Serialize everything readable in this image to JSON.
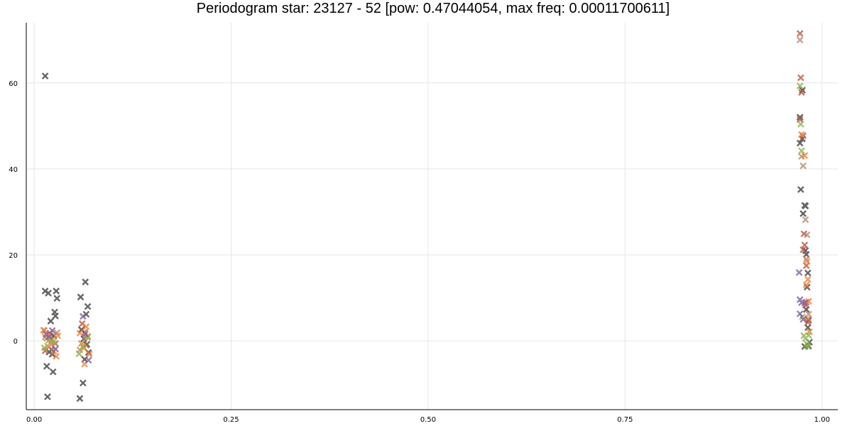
{
  "chart_data": {
    "type": "scatter",
    "title": "Periodogram star: 23127 - 52 [pow: 0.47044054, max freq: 0.00011700611]",
    "xlabel": "",
    "ylabel": "",
    "xlim": [
      -0.01,
      1.02
    ],
    "ylim": [
      -16,
      74
    ],
    "x_ticks": [
      0.0,
      0.25,
      0.5,
      0.75,
      1.0
    ],
    "x_tick_labels": [
      "0.00",
      "0.25",
      "0.50",
      "0.75",
      "1.00"
    ],
    "y_ticks": [
      0,
      20,
      40,
      60
    ],
    "y_tick_labels": [
      "0",
      "20",
      "40",
      "60"
    ],
    "grid": true,
    "legend": "none",
    "marker": "x",
    "series": [
      {
        "color": "#3b3b3b",
        "points": [
          [
            0.014,
            61.6
          ],
          [
            0.014,
            11.6
          ],
          [
            0.018,
            11.1
          ],
          [
            0.028,
            11.6
          ],
          [
            0.016,
            -5.9
          ],
          [
            0.017,
            -13.0
          ],
          [
            0.024,
            -7.2
          ],
          [
            0.026,
            6.7
          ],
          [
            0.027,
            5.8
          ],
          [
            0.029,
            9.9
          ],
          [
            0.021,
            4.6
          ],
          [
            0.022,
            -2.0
          ],
          [
            0.023,
            -3.1
          ],
          [
            0.019,
            -2.6
          ],
          [
            0.025,
            1.2
          ],
          [
            0.059,
            10.2
          ],
          [
            0.058,
            -13.4
          ],
          [
            0.065,
            13.7
          ],
          [
            0.062,
            -9.8
          ],
          [
            0.068,
            8.0
          ],
          [
            0.066,
            6.2
          ],
          [
            0.064,
            -4.3
          ],
          [
            0.069,
            -2.7
          ],
          [
            0.06,
            2.6
          ],
          [
            0.063,
            0.5
          ],
          [
            0.067,
            -0.8
          ],
          [
            0.972,
            52.0
          ],
          [
            0.975,
            47.0
          ],
          [
            0.972,
            46.0
          ],
          [
            0.973,
            35.2
          ],
          [
            0.978,
            31.5
          ],
          [
            0.979,
            31.4
          ],
          [
            0.976,
            29.6
          ],
          [
            0.975,
            58.3
          ],
          [
            0.979,
            21.0
          ],
          [
            0.98,
            20.1
          ],
          [
            0.982,
            15.8
          ],
          [
            0.981,
            12.5
          ],
          [
            0.98,
            7.3
          ],
          [
            0.983,
            4.8
          ],
          [
            0.982,
            3.1
          ],
          [
            0.978,
            -1.3
          ],
          [
            0.983,
            -1.2
          ],
          [
            0.984,
            -0.3
          ]
        ]
      },
      {
        "color": "#b8563f",
        "points": [
          [
            0.972,
            71.5
          ],
          [
            0.973,
            61.2
          ],
          [
            0.974,
            57.8
          ],
          [
            0.972,
            51.5
          ],
          [
            0.976,
            47.7
          ],
          [
            0.977,
            24.9
          ],
          [
            0.978,
            22.3
          ],
          [
            0.976,
            21.2
          ],
          [
            0.98,
            17.5
          ],
          [
            0.98,
            9.0
          ],
          [
            0.979,
            8.3
          ],
          [
            0.982,
            4.3
          ],
          [
            0.02,
            1.8
          ],
          [
            0.027,
            -0.6
          ],
          [
            0.014,
            -2.3
          ],
          [
            0.064,
            2.0
          ],
          [
            0.066,
            -1.0
          ],
          [
            0.061,
            4.0
          ]
        ]
      },
      {
        "color": "#b78a73",
        "points": [
          [
            0.972,
            70.0
          ],
          [
            0.974,
            42.9
          ],
          [
            0.976,
            40.7
          ],
          [
            0.979,
            28.2
          ],
          [
            0.981,
            24.7
          ],
          [
            0.98,
            19.0
          ],
          [
            0.983,
            6.2
          ],
          [
            0.013,
            2.4
          ],
          [
            0.016,
            0.6
          ],
          [
            0.022,
            -0.9
          ],
          [
            0.029,
            1.9
          ],
          [
            0.058,
            -2.1
          ],
          [
            0.065,
            0.9
          ]
        ]
      },
      {
        "color": "#f07f3a",
        "points": [
          [
            0.974,
            48.0
          ],
          [
            0.978,
            43.1
          ],
          [
            0.981,
            18.5
          ],
          [
            0.982,
            14.3
          ],
          [
            0.98,
            13.0
          ],
          [
            0.983,
            9.2
          ],
          [
            0.982,
            5.2
          ],
          [
            0.984,
            2.1
          ],
          [
            0.012,
            2.5
          ],
          [
            0.014,
            0.9
          ],
          [
            0.017,
            -1.2
          ],
          [
            0.019,
            1.6
          ],
          [
            0.021,
            -0.4
          ],
          [
            0.023,
            0.3
          ],
          [
            0.025,
            -2.4
          ],
          [
            0.028,
            -3.6
          ],
          [
            0.03,
            1.2
          ],
          [
            0.058,
            1.8
          ],
          [
            0.06,
            -0.6
          ],
          [
            0.063,
            -1.7
          ],
          [
            0.066,
            3.3
          ],
          [
            0.068,
            1.1
          ],
          [
            0.064,
            -5.4
          ],
          [
            0.07,
            -3.1
          ]
        ]
      },
      {
        "color": "#8ab24a",
        "points": [
          [
            0.972,
            59.3
          ],
          [
            0.973,
            50.4
          ],
          [
            0.974,
            44.2
          ],
          [
            0.975,
            5.6
          ],
          [
            0.977,
            1.2
          ],
          [
            0.979,
            0.6
          ],
          [
            0.981,
            -0.7
          ],
          [
            0.983,
            1.3
          ],
          [
            0.982,
            -1.3
          ],
          [
            0.013,
            -1.6
          ],
          [
            0.019,
            0.2
          ],
          [
            0.025,
            -0.1
          ],
          [
            0.057,
            -3.0
          ],
          [
            0.062,
            -1.3
          ],
          [
            0.068,
            0.8
          ]
        ]
      },
      {
        "color": "#7d5aa0",
        "points": [
          [
            0.971,
            15.9
          ],
          [
            0.972,
            9.6
          ],
          [
            0.972,
            6.3
          ],
          [
            0.974,
            8.9
          ],
          [
            0.976,
            5.0
          ],
          [
            0.978,
            8.8
          ],
          [
            0.015,
            1.5
          ],
          [
            0.019,
            0.9
          ],
          [
            0.023,
            2.4
          ],
          [
            0.027,
            -1.9
          ],
          [
            0.062,
            5.7
          ],
          [
            0.065,
            1.6
          ],
          [
            0.069,
            -4.5
          ]
        ]
      }
    ]
  }
}
